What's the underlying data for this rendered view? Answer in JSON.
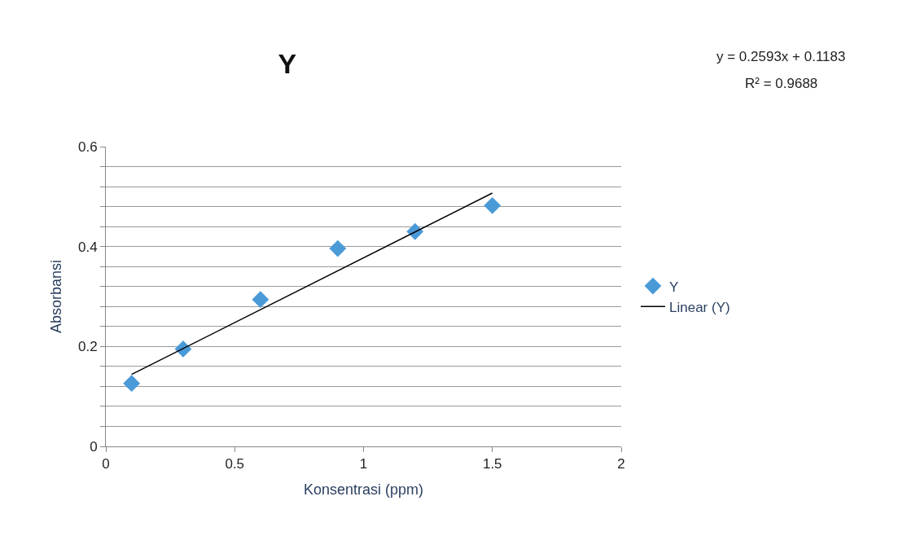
{
  "chart_data": {
    "type": "scatter",
    "title": "Y",
    "xlabel": "Konsentrasi (ppm)",
    "ylabel": "Absorbansi",
    "x": [
      0.1,
      0.3,
      0.6,
      0.9,
      1.2,
      1.5
    ],
    "series": [
      {
        "name": "Y",
        "color": "#4a9ad8",
        "values": [
          0.126,
          0.195,
          0.294,
          0.396,
          0.43,
          0.482
        ]
      },
      {
        "name": "Linear (Y)",
        "type": "line",
        "marker": "none",
        "color": "#000000",
        "x": [
          0.1,
          1.5
        ],
        "values": [
          0.144,
          0.507
        ]
      }
    ],
    "xlim": [
      0,
      2
    ],
    "xticks": [
      0,
      0.5,
      1,
      1.5,
      2
    ],
    "ylim": [
      0,
      0.6
    ],
    "yticks": [
      0,
      {
        "value": 0.04,
        "label": null
      },
      {
        "value": 0.08,
        "label": null
      },
      {
        "value": 0.12,
        "label": null
      },
      {
        "value": 0.16,
        "label": null
      },
      0.2,
      {
        "value": 0.24,
        "label": null
      },
      {
        "value": 0.28,
        "label": null
      },
      {
        "value": 0.32,
        "label": null
      },
      {
        "value": 0.36,
        "label": null
      },
      0.4,
      {
        "value": 0.44,
        "label": null
      },
      {
        "value": 0.48,
        "label": null
      },
      {
        "value": 0.52,
        "label": null
      },
      {
        "value": 0.56,
        "label": null
      },
      0.6
    ],
    "grid": "y",
    "legend": "right",
    "marker": "diamond",
    "annotations": [
      "y = 0.2593x + 0.1183",
      "R² = 0.9688"
    ]
  }
}
